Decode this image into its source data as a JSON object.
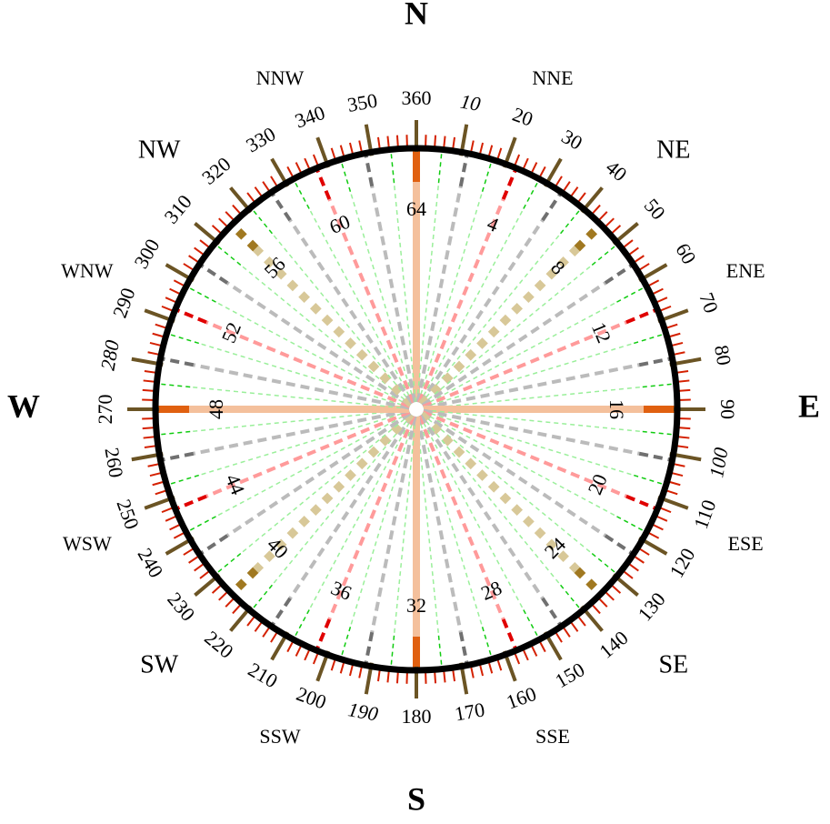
{
  "compass_points": [
    "N",
    "NNE",
    "NE",
    "ENE",
    "E",
    "ESE",
    "SE",
    "SSE",
    "S",
    "SSW",
    "SW",
    "WSW",
    "W",
    "WNW",
    "NW",
    "NNW"
  ],
  "degree_labels": [
    10,
    20,
    30,
    40,
    50,
    60,
    70,
    80,
    90,
    100,
    110,
    120,
    130,
    140,
    150,
    160,
    170,
    180,
    190,
    200,
    210,
    220,
    230,
    240,
    250,
    260,
    270,
    280,
    290,
    300,
    310,
    320,
    330,
    340,
    350,
    360
  ],
  "point_numbers": [
    64,
    4,
    8,
    12,
    16,
    20,
    24,
    28,
    32,
    36,
    40,
    44,
    48,
    52,
    56,
    60
  ]
}
